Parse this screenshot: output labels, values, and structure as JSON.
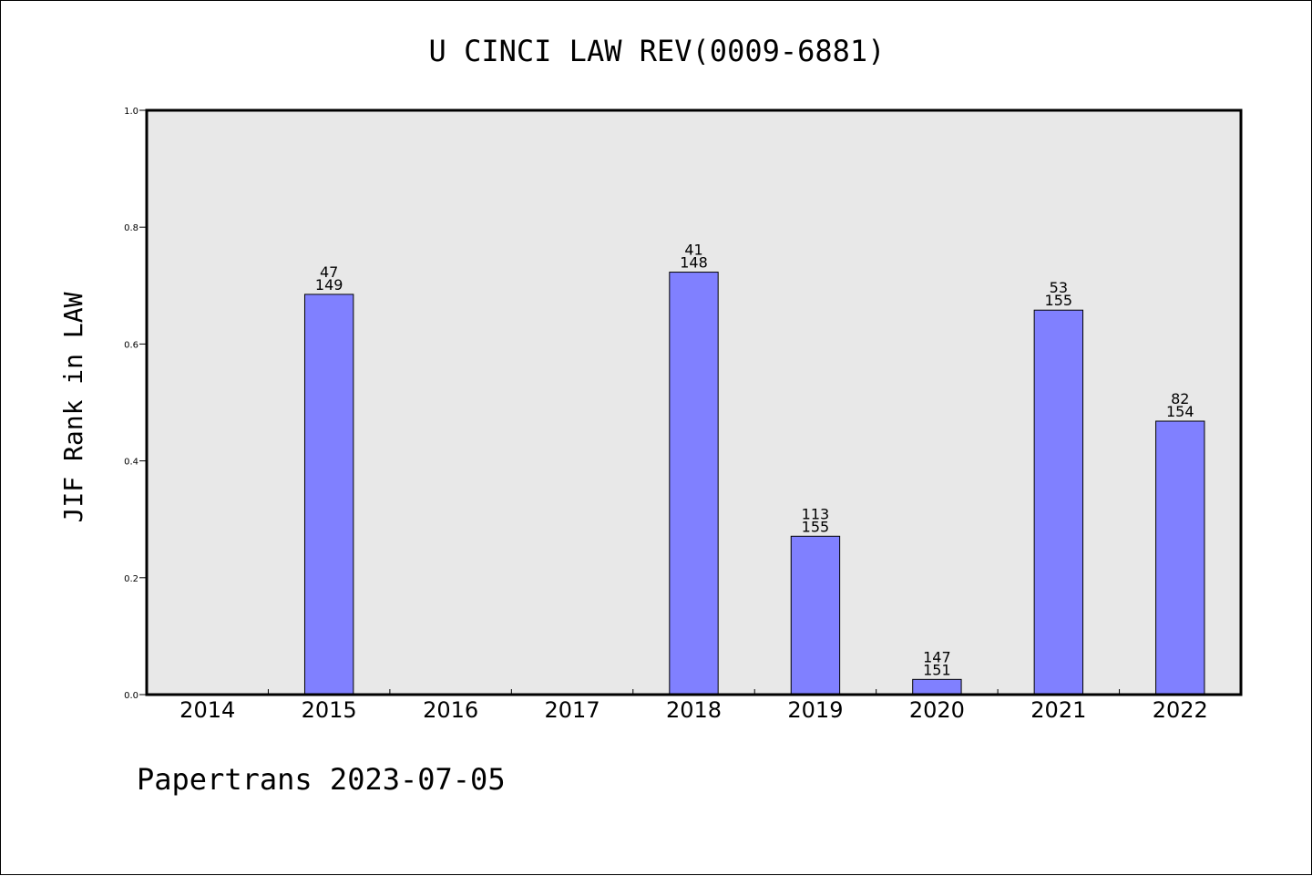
{
  "footer": "Papertrans 2023-07-05",
  "colors": {
    "bar": "#8080ff",
    "plot_background": "#e8e8e8",
    "axis": "#000000"
  },
  "chart_data": {
    "type": "bar",
    "title": "U CINCI LAW REV(0009-6881)",
    "xlabel": "",
    "ylabel": "JIF Rank in LAW",
    "ylim": [
      0,
      1.0
    ],
    "yticks": [
      "0.0",
      "0.2",
      "0.4",
      "0.6",
      "0.8",
      "1.0"
    ],
    "grid": false,
    "categories": [
      "2014",
      "2015",
      "2016",
      "2017",
      "2018",
      "2019",
      "2020",
      "2021",
      "2022"
    ],
    "values": [
      null,
      0.685,
      null,
      null,
      0.723,
      0.271,
      0.026,
      0.658,
      0.468
    ],
    "rank": [
      null,
      "47",
      null,
      null,
      "41",
      "113",
      "147",
      "53",
      "82"
    ],
    "total": [
      null,
      "149",
      null,
      null,
      "148",
      "155",
      "151",
      "155",
      "154"
    ]
  }
}
